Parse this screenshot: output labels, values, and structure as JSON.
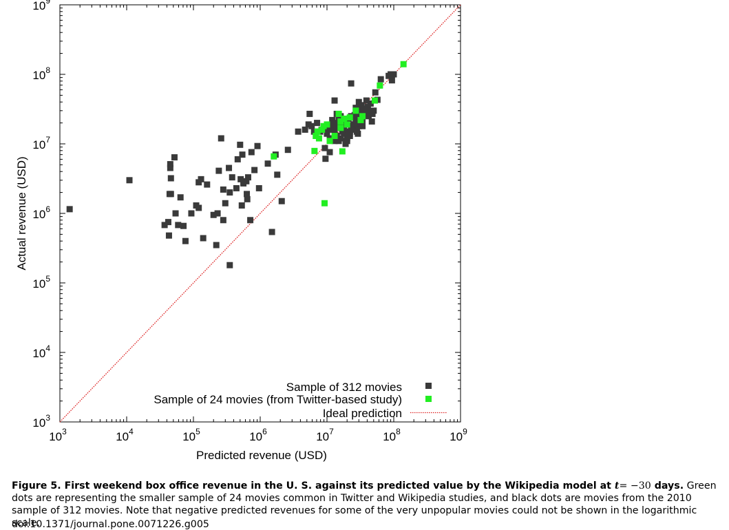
{
  "figure": {
    "caption_title_prefix": "Figure 5. First weekend box office revenue in the U. S. against its predicted value by the Wikipedia model at ",
    "caption_t": "t",
    "caption_eq": "= −30",
    "caption_title_suffix": " days.",
    "caption_body": " Green dots are representing the smaller sample of 24 movies common in Twitter and Wikipedia studies, and black dots are movies from the 2010 sample of 312 movies. Note that negative predicted revenues for some of the very unpopular movies could not be shown in the logarithmic scale.",
    "doi": "doi:10.1371/journal.pone.0071226.g005"
  },
  "chart_data": {
    "type": "scatter",
    "xlabel": "Predicted revenue (USD)",
    "ylabel": "Actual revenue (USD)",
    "x_scale": "log",
    "y_scale": "log",
    "xlim": [
      1000,
      1000000000
    ],
    "ylim": [
      1000,
      1000000000
    ],
    "ticks": [
      {
        "base": "10",
        "exp": "3",
        "value": 1000
      },
      {
        "base": "10",
        "exp": "4",
        "value": 10000
      },
      {
        "base": "10",
        "exp": "5",
        "value": 100000
      },
      {
        "base": "10",
        "exp": "6",
        "value": 1000000
      },
      {
        "base": "10",
        "exp": "7",
        "value": 10000000
      },
      {
        "base": "10",
        "exp": "8",
        "value": 100000000
      },
      {
        "base": "10",
        "exp": "9",
        "value": 1000000000
      }
    ],
    "grid": false,
    "legend_position": "bottom-right",
    "colors": {
      "sample312": "#3a3a3a",
      "sample24": "#22ee22",
      "ideal": "#dd2222"
    },
    "series": [
      {
        "name": "Sample of 312 movies",
        "marker": "square",
        "color": "#3a3a3a",
        "x": [
          1400.0,
          11000.0,
          37000.0,
          42000.0,
          43000.0,
          45000.0,
          45000.0,
          46000.0,
          46000.0,
          52000.0,
          59000.0,
          64000.0,
          54000.0,
          44000.0,
          71000.0,
          76000.0,
          93000.0,
          110000.0,
          120000.0,
          120000.0,
          130000.0,
          140000.0,
          160000.0,
          200000.0,
          220000.0,
          230000.0,
          240000.0,
          260000.0,
          280000.0,
          280000.0,
          300000.0,
          340000.0,
          350000.0,
          350000.0,
          380000.0,
          440000.0,
          460000.0,
          500000.0,
          510000.0,
          530000.0,
          540000.0,
          560000.0,
          620000.0,
          630000.0,
          640000.0,
          660000.0,
          710000.0,
          740000.0,
          820000.0,
          910000.0,
          960000.0,
          1300000.0,
          1500000.0,
          1700000.0,
          1800000.0,
          2100000.0,
          2600000.0,
          3700000.0,
          4700000.0,
          5300000.0,
          5500000.0,
          5900000.0,
          6400000.0,
          7100000.0,
          7900000.0,
          8300000.0,
          9300000.0,
          10000000.0,
          11000000.0,
          12000000.0,
          13000000.0,
          14000000.0,
          15000000.0,
          16000000.0,
          17000000.0,
          18000000.0,
          19000000.0,
          20000000.0,
          21000000.0,
          22000000.0,
          23000000.0,
          24000000.0,
          25000000.0,
          26000000.0,
          27000000.0,
          28000000.0,
          29000000.0,
          30000000.0,
          31000000.0,
          32000000.0,
          33000000.0,
          34000000.0,
          35000000.0,
          36000000.0,
          38000000.0,
          39000000.0,
          41000000.0,
          43000000.0,
          45000000.0,
          47000000.0,
          50000000.0,
          53000000.0,
          57000000.0,
          64000000.0,
          84000000.0,
          94000000.0,
          11000000.0,
          12000000.0,
          13000000.0,
          14000000.0,
          16000000.0,
          18000000.0,
          20000000.0,
          22000000.0,
          24000000.0,
          27000000.0,
          30000000.0,
          33000000.0,
          36000000.0,
          15000000.0,
          17000000.0,
          19000000.0,
          21000000.0,
          23000000.0,
          26000000.0,
          29000000.0,
          32000000.0,
          35000000.0,
          40000000.0,
          10000000.0,
          12000000.0,
          14000000.0,
          16000000.0,
          18000000.0,
          20000000.0,
          23000000.0,
          25000000.0,
          28000000.0,
          31000000.0,
          9500000.0,
          11000000.0,
          13000000.0,
          15000000.0,
          17000000.0,
          19000000.0,
          22000000.0,
          25000000.0,
          28000000.0,
          31000000.0,
          34000000.0,
          37000000.0,
          42000000.0,
          48000000.0,
          23000000.0,
          33000000.0,
          90000000.0,
          100000000.0,
          13000000.0
        ],
        "y": [
          1150000.0,
          3000000.0,
          680000.0,
          750000.0,
          480000.0,
          4500000.0,
          5100000.0,
          3200000.0,
          1900000.0,
          6400000.0,
          680000.0,
          1700000.0,
          1000000.0,
          1900000.0,
          660000.0,
          400000.0,
          1000000.0,
          1300000.0,
          1200000.0,
          2800000.0,
          3100000.0,
          440000.0,
          2600000.0,
          950000.0,
          350000.0,
          1000000.0,
          4100000.0,
          12000000.0,
          800000.0,
          2200000.0,
          1400000.0,
          4500000.0,
          180000.0,
          2000000.0,
          3300000.0,
          2300000.0,
          6000000.0,
          9700000.0,
          3100000.0,
          1300000.0,
          7000000.0,
          2700000.0,
          2900000.0,
          1900000.0,
          1600000.0,
          3300000.0,
          800000.0,
          7600000.0,
          4200000.0,
          9300000.0,
          2300000.0,
          5200000.0,
          540000.0,
          7000000.0,
          3600000.0,
          1500000.0,
          8200000.0,
          15000000.0,
          16000000.0,
          19000000.0,
          27000000.0,
          18000000.0,
          15000000.0,
          20000000.0,
          15000000.0,
          16000000.0,
          8700000.0,
          14000000.0,
          12000000.0,
          22000000.0,
          11000000.0,
          27000000.0,
          19000000.0,
          25000000.0,
          15000000.0,
          18000000.0,
          11000000.0,
          21000000.0,
          23000000.0,
          14000000.0,
          18000000.0,
          17000000.0,
          19000000.0,
          26000000.0,
          33000000.0,
          16000000.0,
          29000000.0,
          18000000.0,
          22000000.0,
          25000000.0,
          36000000.0,
          18000000.0,
          28000000.0,
          31000000.0,
          26000000.0,
          42000000.0,
          34000000.0,
          28000000.0,
          38000000.0,
          21000000.0,
          30000000.0,
          55000000.0,
          43000000.0,
          85000000.0,
          95000000.0,
          82000000.0,
          16000000.0,
          17000000.0,
          20000000.0,
          13000000.0,
          24000000.0,
          14000000.0,
          12000000.0,
          15000000.0,
          18000000.0,
          22000000.0,
          40000000.0,
          27000000.0,
          26000000.0,
          23000000.0,
          17000000.0,
          15000000.0,
          13000000.0,
          25000000.0,
          19000000.0,
          14000000.0,
          23000000.0,
          32000000.0,
          28000000.0,
          15000000.0,
          19000000.0,
          17000000.0,
          12000000.0,
          21000000.0,
          11000000.0,
          16000000.0,
          24000000.0,
          20000000.0,
          27000000.0,
          6100000.0,
          7600000.0,
          14000000.0,
          11000000.0,
          16000000.0,
          10000000.0,
          13000000.0,
          24000000.0,
          15000000.0,
          35000000.0,
          22000000.0,
          28000000.0,
          25000000.0,
          27000000.0,
          74000000.0,
          20000000.0,
          100000000.0,
          100000000.0,
          42000000.0
        ]
      },
      {
        "name": "Sample of 24 movies (from Twitter-based study)",
        "marker": "square",
        "color": "#22ee22",
        "x": [
          1600000.0,
          6500000.0,
          6800000.0,
          7200000.0,
          7600000.0,
          8400000.0,
          8900000.0,
          9200000.0,
          10000000.0,
          11000000.0,
          13000000.0,
          15000000.0,
          16000000.0,
          17000000.0,
          18000000.0,
          20000000.0,
          27000000.0,
          32000000.0,
          34000000.0,
          52000000.0,
          62000000.0,
          140000000.0,
          16000000.0,
          22000000.0
        ],
        "y": [
          6600000.0,
          7900000.0,
          13000000.0,
          15000000.0,
          12000000.0,
          16000000.0,
          18000000.0,
          1400000.0,
          19000000.0,
          11000000.0,
          13000000.0,
          27000000.0,
          21000000.0,
          7800000.0,
          23000000.0,
          19000000.0,
          30000000.0,
          22000000.0,
          25000000.0,
          42000000.0,
          69000000.0,
          140000000.0,
          17000000.0,
          24000000.0
        ]
      },
      {
        "name": "Ideal prediction",
        "type": "line",
        "style": "dotted",
        "color": "#dd2222",
        "x": [
          1000,
          1000000000
        ],
        "y": [
          1000,
          1000000000
        ]
      }
    ]
  }
}
